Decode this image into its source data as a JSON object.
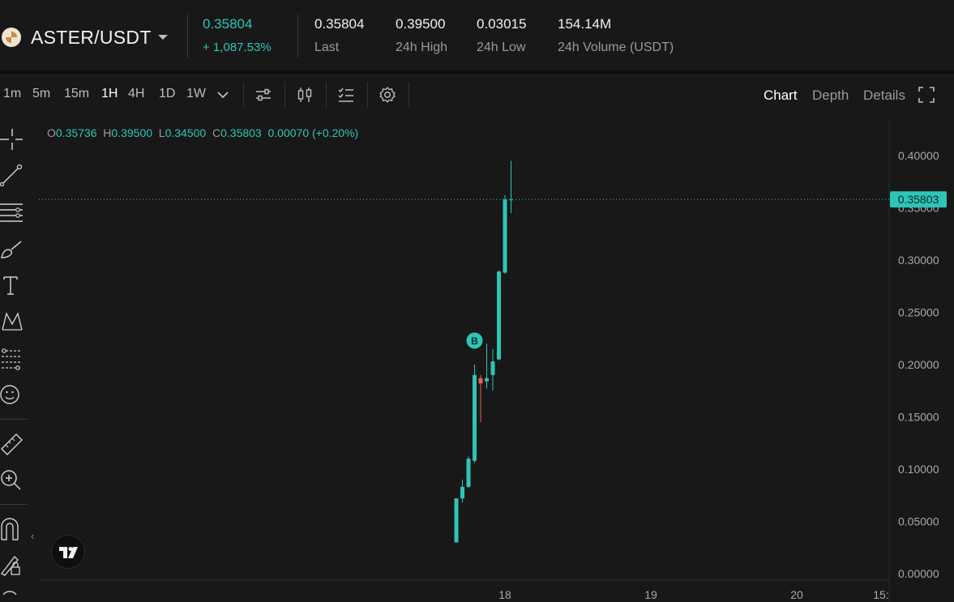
{
  "header": {
    "pair": "ASTER/USDT",
    "last_price": "0.35804",
    "change_pct": "+ 1,087.53%",
    "stats": [
      {
        "value": "0.35804",
        "label": "Last"
      },
      {
        "value": "0.39500",
        "label": "24h High"
      },
      {
        "value": "0.03015",
        "label": "24h Low"
      },
      {
        "value": "154.14M",
        "label": "24h Volume (USDT)"
      }
    ]
  },
  "toolbar": {
    "timeframes": [
      "1m",
      "5m",
      "15m",
      "1H",
      "4H",
      "1D",
      "1W"
    ],
    "active_timeframe": "1H",
    "views": [
      "Chart",
      "Depth",
      "Details"
    ],
    "active_view": "Chart"
  },
  "ohlc": {
    "o_label": "O",
    "o": "0.35736",
    "h_label": "H",
    "h": "0.39500",
    "l_label": "L",
    "l": "0.34500",
    "c_label": "C",
    "c": "0.35803",
    "change": "0.00070 (+0.20%)"
  },
  "chart_data": {
    "type": "candlestick",
    "y_ticks": [
      "0.40000",
      "0.35000",
      "0.30000",
      "0.25000",
      "0.20000",
      "0.15000",
      "0.10000",
      "0.05000",
      "0.00000"
    ],
    "y_range": [
      0.0,
      0.42
    ],
    "x_ticks": [
      "18",
      "19",
      "20",
      "15:"
    ],
    "last_price_label": "0.35803",
    "last_price": 0.35803,
    "marker": {
      "label": "B",
      "price": 0.223
    },
    "up_color": "#2ec4b6",
    "down_color": "#e4625b",
    "candles": [
      {
        "o": 0.03,
        "h": 0.072,
        "l": 0.03,
        "c": 0.072
      },
      {
        "o": 0.072,
        "h": 0.09,
        "l": 0.068,
        "c": 0.083
      },
      {
        "o": 0.083,
        "h": 0.112,
        "l": 0.082,
        "c": 0.11
      },
      {
        "o": 0.108,
        "h": 0.2,
        "l": 0.106,
        "c": 0.19
      },
      {
        "o": 0.187,
        "h": 0.19,
        "l": 0.145,
        "c": 0.182
      },
      {
        "o": 0.184,
        "h": 0.22,
        "l": 0.177,
        "c": 0.187
      },
      {
        "o": 0.19,
        "h": 0.215,
        "l": 0.175,
        "c": 0.203
      },
      {
        "o": 0.205,
        "h": 0.29,
        "l": 0.204,
        "c": 0.289
      },
      {
        "o": 0.288,
        "h": 0.362,
        "l": 0.287,
        "c": 0.358
      },
      {
        "o": 0.35736,
        "h": 0.395,
        "l": 0.345,
        "c": 0.35803
      }
    ]
  },
  "colors": {
    "accent": "#2ec4b6",
    "background": "#181818"
  }
}
